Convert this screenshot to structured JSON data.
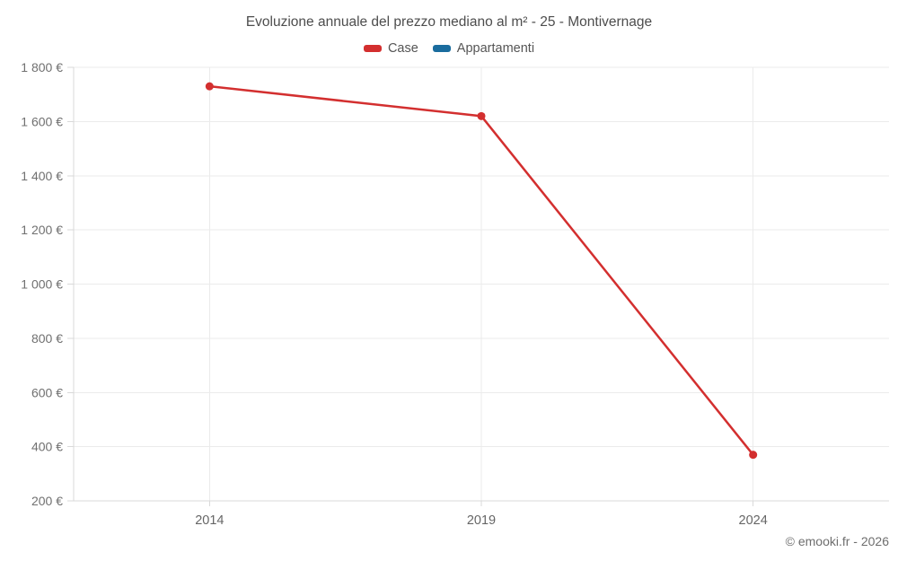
{
  "chart": {
    "title": "Evoluzione annuale del prezzo mediano al m² - 25 - Montivernage",
    "copyright": "© emooki.fr - 2026"
  },
  "chart_data": {
    "type": "line",
    "title": "Evoluzione annuale del prezzo mediano al m² - 25 - Montivernage",
    "categories": [
      "2014",
      "2019",
      "2024"
    ],
    "series": [
      {
        "name": "Case",
        "color": "#d32f2f",
        "values": [
          1730,
          1620,
          370
        ]
      },
      {
        "name": "Appartamenti",
        "color": "#1a6c9e",
        "values": [
          null,
          null,
          null
        ]
      }
    ],
    "xlabel": "",
    "ylabel": "",
    "ylim": [
      200,
      1800
    ],
    "ytick_step": 200,
    "ytick_labels": [
      "200 €",
      "400 €",
      "600 €",
      "800 €",
      "1 000 €",
      "1 200 €",
      "1 400 €",
      "1 600 €",
      "1 800 €"
    ],
    "grid": true,
    "legend_position": "top",
    "marker": "circle",
    "marker_radius": 4.5
  }
}
